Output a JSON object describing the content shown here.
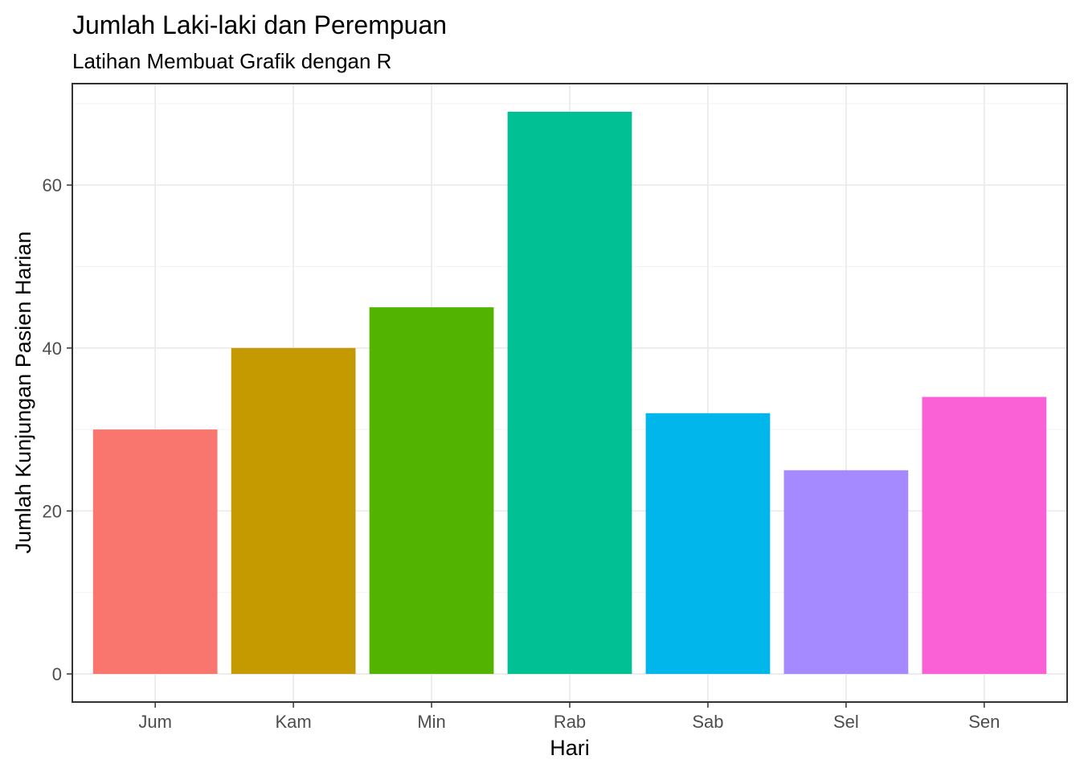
{
  "chart_data": {
    "type": "bar",
    "title": "Jumlah Laki-laki dan Perempuan",
    "subtitle": "Latihan Membuat Grafik dengan R",
    "xlabel": "Hari",
    "ylabel": "Jumlah Kunjungan Pasien Harian",
    "categories": [
      "Jum",
      "Kam",
      "Min",
      "Rab",
      "Sab",
      "Sel",
      "Sen"
    ],
    "values": [
      30,
      40,
      45,
      69,
      32,
      25,
      34
    ],
    "colors": [
      "#F8766D",
      "#C49A00",
      "#53B400",
      "#00C094",
      "#00B6EB",
      "#A58AFF",
      "#FB61D7"
    ],
    "ylim": [
      -3.45,
      72.45
    ],
    "yticks": [
      0,
      20,
      40,
      60
    ],
    "grid": true,
    "legend": "none"
  }
}
